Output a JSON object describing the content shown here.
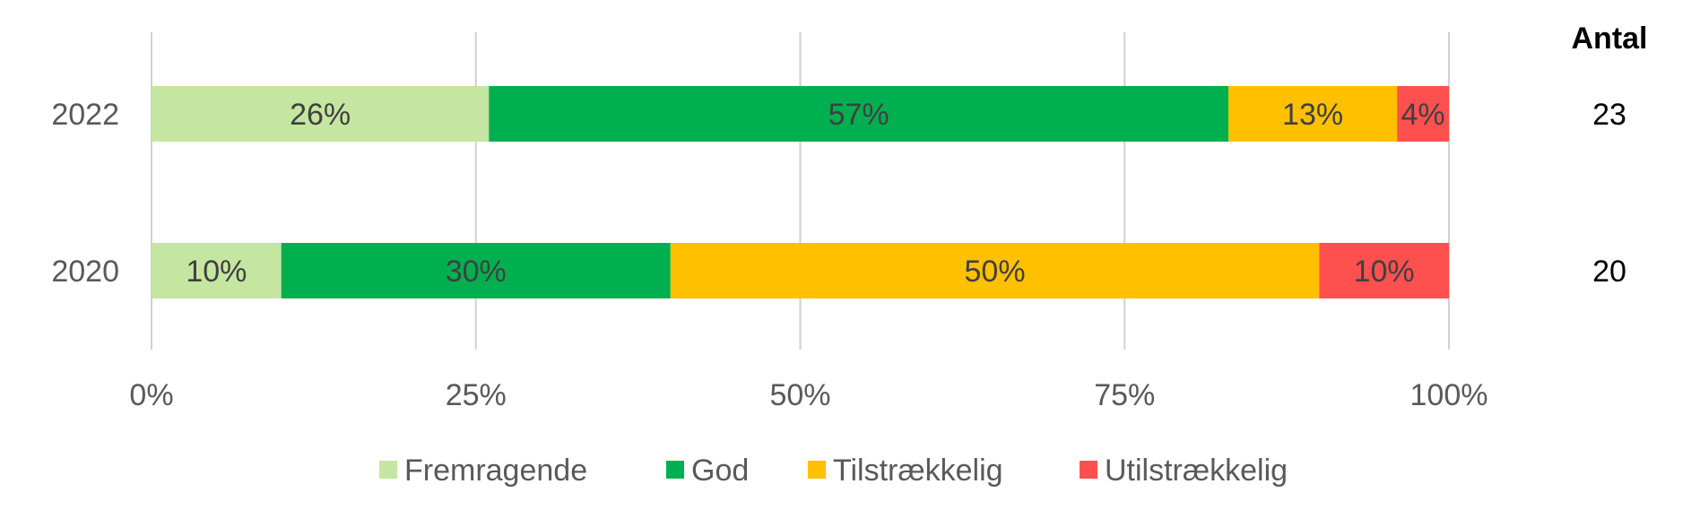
{
  "chart_data": {
    "type": "bar",
    "orientation": "horizontal",
    "stacked": "100%",
    "categories": [
      "2022",
      "2020"
    ],
    "series": [
      {
        "name": "Fremragende",
        "color": "#c5e6a0",
        "values": [
          26,
          10
        ],
        "labels": [
          "26%",
          "10%"
        ]
      },
      {
        "name": "God",
        "color": "#00b050",
        "values": [
          57,
          30
        ],
        "labels": [
          "57%",
          "30%"
        ]
      },
      {
        "name": "Tilstrækkelig",
        "color": "#ffc000",
        "values": [
          13,
          50
        ],
        "labels": [
          "13%",
          "50%"
        ]
      },
      {
        "name": "Utilstrækkelig",
        "color": "#ff5050",
        "values": [
          4,
          10
        ],
        "labels": [
          "4%",
          "10%"
        ]
      }
    ],
    "x_ticks": [
      "0%",
      "25%",
      "50%",
      "75%",
      "100%"
    ],
    "xlim": [
      0,
      100
    ],
    "grid": "vertical",
    "legend_position": "bottom",
    "count_header": "Antal",
    "counts": [
      "23",
      "20"
    ]
  }
}
